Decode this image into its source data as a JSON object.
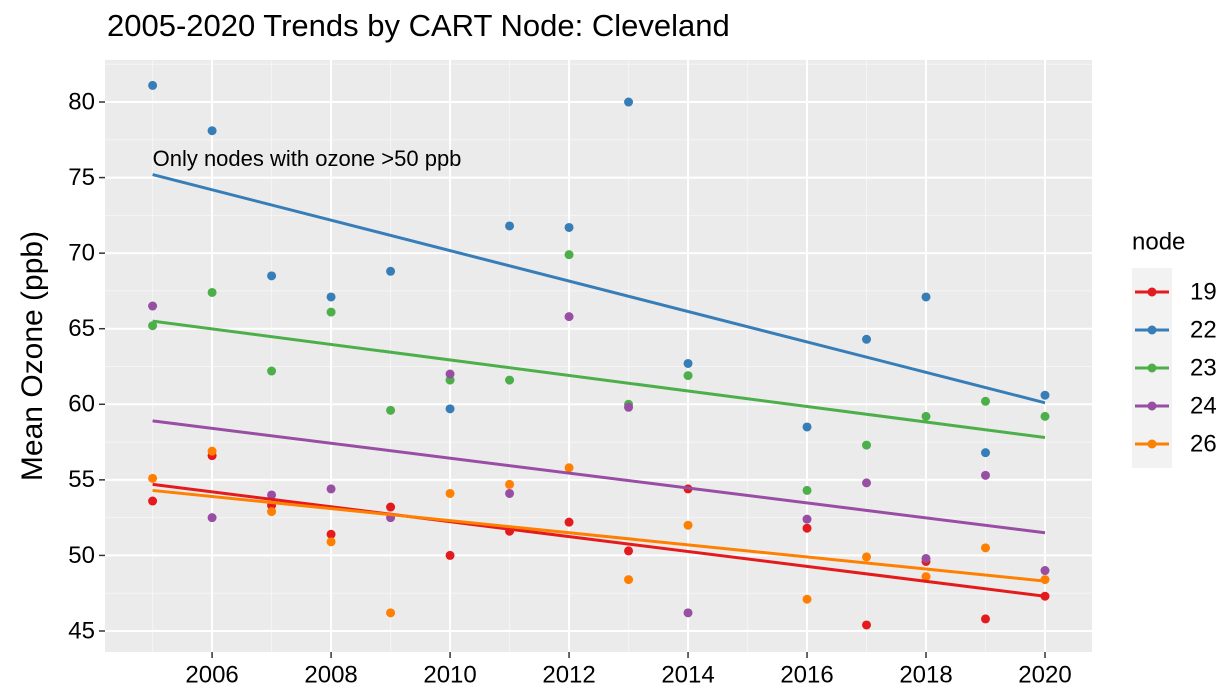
{
  "chart_data": {
    "type": "scatter",
    "title": "2005-2020 Trends by CART Node: Cleveland",
    "y_label": "Mean Ozone (ppb)",
    "annotation": "Only nodes with ozone >50 ppb",
    "legend_title": "node",
    "legend": "right",
    "grid": true,
    "x": [
      2005,
      2006,
      2007,
      2008,
      2009,
      2010,
      2011,
      2012,
      2013,
      2014,
      2016,
      2017,
      2018,
      2019,
      2020
    ],
    "xlim": [
      2004.2,
      2020.79
    ],
    "xticks": [
      2006,
      2008,
      2010,
      2012,
      2014,
      2016,
      2018,
      2020
    ],
    "ylim": [
      43.61,
      82.78
    ],
    "yticks": [
      45,
      50,
      55,
      60,
      65,
      70,
      75,
      80
    ],
    "series": [
      {
        "name": "19",
        "color": "#E41A1C",
        "values": [
          53.6,
          56.6,
          53.3,
          51.4,
          53.2,
          50.0,
          51.6,
          52.2,
          50.3,
          54.4,
          51.8,
          45.4,
          49.6,
          45.8,
          47.3
        ],
        "trend": [
          54.7,
          47.3
        ]
      },
      {
        "name": "22",
        "color": "#377EB8",
        "values": [
          81.1,
          78.1,
          68.5,
          67.1,
          68.8,
          59.7,
          71.8,
          71.7,
          80.0,
          62.7,
          58.5,
          64.3,
          67.1,
          56.8,
          60.6
        ],
        "trend": [
          75.2,
          60.1
        ]
      },
      {
        "name": "23",
        "color": "#4DAF4A",
        "values": [
          65.2,
          67.4,
          62.2,
          66.1,
          59.6,
          61.6,
          61.6,
          69.9,
          60.0,
          61.9,
          54.3,
          57.3,
          59.2,
          60.2,
          59.2
        ],
        "trend": [
          65.5,
          57.8
        ]
      },
      {
        "name": "24",
        "color": "#984EA3",
        "values": [
          66.5,
          52.5,
          54.0,
          54.4,
          52.5,
          62.0,
          54.1,
          65.8,
          59.8,
          46.2,
          52.4,
          54.8,
          49.8,
          55.3,
          49.0
        ],
        "trend": [
          58.9,
          51.5
        ]
      },
      {
        "name": "26",
        "color": "#FF7F00",
        "values": [
          55.1,
          56.9,
          52.9,
          50.9,
          46.2,
          54.1,
          54.7,
          55.8,
          48.4,
          52.0,
          47.1,
          49.9,
          48.6,
          50.5,
          48.4
        ],
        "trend": [
          54.3,
          48.3
        ]
      }
    ]
  }
}
